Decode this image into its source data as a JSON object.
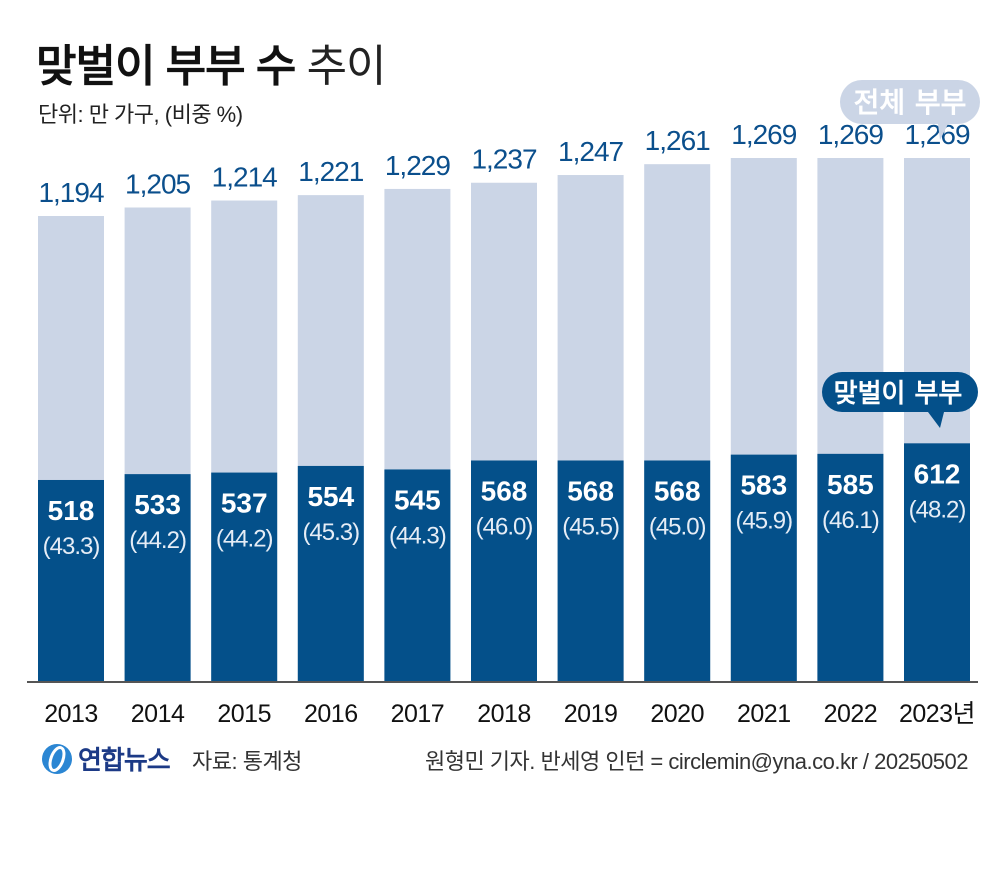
{
  "title": {
    "bold": "맞벌이 부부 수",
    "light": "추이"
  },
  "unit_label": "단위: 만 가구, (비중 %)",
  "colors": {
    "total_bar": "#cbd5e6",
    "dual_bar": "#04508a",
    "total_label": "#0b4f8c",
    "axis": "#555555"
  },
  "chart_data": {
    "type": "bar",
    "title": "맞벌이 부부 수 추이",
    "categories": [
      "2013",
      "2014",
      "2015",
      "2016",
      "2017",
      "2018",
      "2019",
      "2020",
      "2021",
      "2022",
      "2023년"
    ],
    "series": [
      {
        "name": "전체 부부",
        "values": [
          1194,
          1205,
          1214,
          1221,
          1229,
          1237,
          1247,
          1261,
          1269,
          1269,
          1269
        ],
        "labels": [
          "1,194",
          "1,205",
          "1,214",
          "1,221",
          "1,229",
          "1,237",
          "1,247",
          "1,261",
          "1,269",
          "1,269",
          "1,269"
        ]
      },
      {
        "name": "맞벌이 부부",
        "values": [
          518,
          533,
          537,
          554,
          545,
          568,
          568,
          568,
          583,
          585,
          612
        ],
        "share_pct": [
          "(43.3)",
          "(44.2)",
          "(44.2)",
          "(45.3)",
          "(44.3)",
          "(46.0)",
          "(45.5)",
          "(45.0)",
          "(45.9)",
          "(46.1)",
          "(48.2)"
        ]
      }
    ],
    "legend": [
      "전체 부부",
      "맞벌이 부부"
    ],
    "xlabel": "",
    "ylabel": ""
  },
  "callouts": {
    "total": "전체 부부",
    "dual": "맞벌이 부부"
  },
  "footer": {
    "brand": "연합뉴스",
    "source": "자료: 통계청",
    "credit": "원형민 기자. 반세영 인턴 = circlemin@yna.co.kr / 20250502"
  }
}
